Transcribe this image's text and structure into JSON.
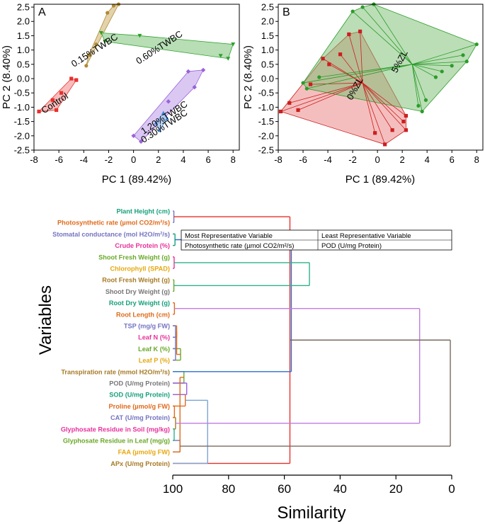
{
  "chart_data": [
    {
      "type": "scatter",
      "panel_label": "A",
      "xlabel": "PC 1 (89.42%)",
      "ylabel": "PC 2 (8.40%)",
      "xlim": [
        -8,
        8.5
      ],
      "ylim": [
        -2.5,
        2.6
      ],
      "xticks": [
        "-8",
        "-6",
        "-4",
        "-2",
        "0",
        "2",
        "4",
        "6",
        "8"
      ],
      "yticks": [
        "2.5",
        "2.0",
        "1.5",
        "1.0",
        "0.5",
        "0.0",
        "-0.5",
        "-1.0",
        "-1.5",
        "-2.0",
        "-2.5"
      ],
      "groups": [
        {
          "name": "Control",
          "color": "#e8302c",
          "fill": "#f4a6a4",
          "marker": "square",
          "label_at": [
            -6.2,
            -0.95
          ],
          "points": [
            [
              -7.6,
              -1.15
            ],
            [
              -6.2,
              -1.1
            ],
            [
              -5.8,
              -0.5
            ],
            [
              -5.0,
              0.0
            ],
            [
              -4.6,
              -0.05
            ],
            [
              -6.5,
              -0.75
            ]
          ]
        },
        {
          "name": "0.15%TWBC",
          "color": "#b08a32",
          "fill": "#d9c38f",
          "marker": "circle",
          "label_at": [
            -3.0,
            0.9
          ],
          "points": [
            [
              -3.8,
              0.45
            ],
            [
              -3.6,
              0.82
            ],
            [
              -3.0,
              1.2
            ],
            [
              -2.1,
              2.3
            ],
            [
              -1.2,
              2.6
            ],
            [
              -1.6,
              2.55
            ]
          ]
        },
        {
          "name": "0.60%TWBC",
          "color": "#2ea02c",
          "fill": "#9fd39c",
          "marker": "triangle-down",
          "label_at": [
            2.2,
            1.0
          ],
          "points": [
            [
              -2.6,
              1.6
            ],
            [
              -2.3,
              1.3
            ],
            [
              0.5,
              1.5
            ],
            [
              7.0,
              0.8
            ],
            [
              7.6,
              0.7
            ],
            [
              8.0,
              1.2
            ]
          ]
        },
        {
          "name": "1.20%TWBC",
          "color": "#9a62d9",
          "fill": "#cdb5ef",
          "marker": "diamond",
          "label_at": [
            2.6,
            -1.45
          ],
          "points": [
            [
              0.0,
              -2.0
            ],
            [
              0.6,
              -2.2
            ],
            [
              2.8,
              -0.8
            ],
            [
              4.4,
              0.25
            ],
            [
              5.6,
              0.3
            ],
            [
              4.9,
              -0.3
            ]
          ]
        },
        {
          "name": "0.30%TWBC",
          "color": "#3b86d6",
          "fill": "#a6c9ef",
          "marker": "triangle-up",
          "label_at": [
            2.6,
            -1.75
          ],
          "points": [
            [
              1.8,
              -1.55
            ],
            [
              2.1,
              -1.8
            ],
            [
              2.7,
              -1.4
            ],
            [
              2.4,
              -1.2
            ]
          ]
        }
      ]
    },
    {
      "type": "scatter",
      "panel_label": "B",
      "xlabel": "PC 1 (89.42%)",
      "ylabel": "PC 2 (8.40%)",
      "xlim": [
        -8,
        8.5
      ],
      "ylim": [
        -2.5,
        2.6
      ],
      "xticks": [
        "-8",
        "-6",
        "-4",
        "-2",
        "0",
        "2",
        "4",
        "6",
        "8"
      ],
      "yticks": [
        "2.5",
        "2.0",
        "1.5",
        "1.0",
        "0.5",
        "0.0",
        "-0.5",
        "-1.0",
        "-1.5",
        "-2.0",
        "-2.5"
      ],
      "groups": [
        {
          "name": "0%ZL",
          "color": "#cc1f1f",
          "fill": "rgba(232,110,110,0.45)",
          "marker": "square",
          "label_at": [
            -1.6,
            -0.4
          ],
          "center": [
            -1.2,
            -0.15
          ],
          "points": [
            [
              -7.8,
              -1.15
            ],
            [
              -7.1,
              -0.85
            ],
            [
              -6.4,
              -1.1
            ],
            [
              -5.4,
              -0.2
            ],
            [
              -4.4,
              0.7
            ],
            [
              -3.9,
              0.5
            ],
            [
              -3.0,
              0.85
            ],
            [
              -2.3,
              1.55
            ],
            [
              -1.4,
              1.65
            ],
            [
              -0.2,
              -1.9
            ],
            [
              0.6,
              -2.3
            ],
            [
              1.2,
              -1.8
            ],
            [
              2.1,
              -1.5
            ],
            [
              2.3,
              -1.8
            ],
            [
              2.3,
              -1.3
            ]
          ]
        },
        {
          "name": "5%ZL",
          "color": "#2a9c2a",
          "fill": "rgba(120,190,110,0.5)",
          "marker": "circle",
          "label_at": [
            2.0,
            0.55
          ],
          "center": [
            2.8,
            0.5
          ],
          "points": [
            [
              -6.0,
              -0.15
            ],
            [
              -5.7,
              -0.35
            ],
            [
              -4.7,
              0.05
            ],
            [
              -2.0,
              2.35
            ],
            [
              -1.2,
              2.5
            ],
            [
              -0.3,
              2.6
            ],
            [
              3.3,
              -0.95
            ],
            [
              3.6,
              -1.15
            ],
            [
              3.9,
              -0.75
            ],
            [
              4.7,
              0.05
            ],
            [
              5.2,
              0.25
            ],
            [
              6.0,
              0.45
            ],
            [
              6.9,
              0.82
            ],
            [
              7.2,
              0.6
            ],
            [
              8.0,
              1.2
            ]
          ]
        }
      ]
    },
    {
      "type": "dendrogram",
      "xlabel": "Similarity",
      "ylabel": "Variables",
      "xlim": [
        100,
        0
      ],
      "xticks": [
        "100",
        "80",
        "60",
        "40",
        "20",
        "0"
      ],
      "leaves": [
        {
          "label": "Plant Height (cm)",
          "color": "#17a07a"
        },
        {
          "label": "Photosynthetic rate (µmol CO2/m²/s)",
          "color": "#e06a1a"
        },
        {
          "label": "Stomatal conductance (mol H2O/m²/s)",
          "color": "#7474c2"
        },
        {
          "label": "Crude Protein (%)",
          "color": "#e8319a"
        },
        {
          "label": "Shoot Fresh Weight (g)",
          "color": "#6aa829"
        },
        {
          "label": "Chlorophyll (SPAD)",
          "color": "#e6a80f"
        },
        {
          "label": "Root Fresh Weight (g)",
          "color": "#a77a26"
        },
        {
          "label": "Shoot Dry Weight (g)",
          "color": "#777777"
        },
        {
          "label": "Root Dry Weight (g)",
          "color": "#17a07a"
        },
        {
          "label": "Root Length (cm)",
          "color": "#e06a1a"
        },
        {
          "label": "TSP (mg/g FW)",
          "color": "#7474c2"
        },
        {
          "label": "Leaf N (%)",
          "color": "#e8319a"
        },
        {
          "label": "Leaf K (%)",
          "color": "#6aa829"
        },
        {
          "label": "Leaf P (%)",
          "color": "#e6a80f"
        },
        {
          "label": "Transpiration rate (mmol H2O/m²/s)",
          "color": "#a77a26"
        },
        {
          "label": "POD (U/mg Protein)",
          "color": "#777777"
        },
        {
          "label": "SOD (U/mg Protein)",
          "color": "#17a07a"
        },
        {
          "label": "Proline (µmol/g FW)",
          "color": "#e06a1a"
        },
        {
          "label": "CAT (U/mg Protein)",
          "color": "#7474c2"
        },
        {
          "label": "Glyphosate Residue in Soil (mg/kg)",
          "color": "#e8319a"
        },
        {
          "label": "Glyphosate Residue in Leaf (mg/g)",
          "color": "#6aa829"
        },
        {
          "label": "FAA (µmol/g FW)",
          "color": "#e6a80f"
        },
        {
          "label": "APx (U/mg Protein)",
          "color": "#a77a26"
        }
      ],
      "merges": [
        {
          "nodes": [
            0,
            1
          ],
          "sim": 99.6,
          "color": "#7474c2"
        },
        {
          "nodes": [
            2,
            3
          ],
          "sim": 99.2,
          "color": "#17a07a"
        },
        {
          "nodes": [
            4,
            5
          ],
          "sim": 99.5,
          "color": "#e8319a"
        },
        {
          "nodes": [
            6,
            7
          ],
          "sim": 99.6,
          "color": "#6aa829"
        },
        {
          "nodes": [
            8,
            9
          ],
          "sim": 99.4,
          "color": "#e06a1a"
        },
        {
          "nodes": [
            10,
            11
          ],
          "sim": 98.6,
          "color": "#e06a1a"
        },
        {
          "nodes": [
            12,
            13
          ],
          "sim": 97.2,
          "color": "#6aa829"
        },
        {
          "nodes": [
            14,
            15
          ],
          "sim": 96.0,
          "color": "#6aa829"
        },
        {
          "nodes": [
            16,
            17
          ],
          "sim": 95.5,
          "color": "#e06a1a"
        },
        {
          "nodes": [
            10,
            11,
            12,
            13
          ],
          "sim": 99.0,
          "color": "#7474c2"
        },
        {
          "nodes": [
            18,
            19
          ],
          "sim": 99.0,
          "color": "#a77a26"
        },
        {
          "nodes": [
            20,
            21
          ],
          "sim": 97.4,
          "color": "#7474c2"
        },
        {
          "nodes": [
            22,
            23
          ],
          "sim": 58.0,
          "color": "#e8302c"
        },
        {
          "nodes": [
            24,
            14
          ],
          "sim": 57.5,
          "color": "#2a6fd0"
        },
        {
          "nodes": [
            25,
            26
          ],
          "sim": 51.0,
          "color": "#2eb08c"
        },
        {
          "nodes": [
            15,
            16
          ],
          "sim": 95.0,
          "color": "#9a62d9"
        },
        {
          "nodes": [
            17,
            18
          ],
          "sim": 99.4,
          "color": "#e06a1a"
        },
        {
          "nodes": [
            19,
            20
          ],
          "sim": 99.5,
          "color": "#2eb08c"
        },
        {
          "nodes": [
            28,
            29
          ],
          "sim": 98.6,
          "color": "#e06a1a"
        },
        {
          "nodes": [
            30,
            21
          ],
          "sim": 97.4,
          "color": "#e06a1a"
        },
        {
          "nodes": [
            31,
            22
          ],
          "sim": 87.5,
          "color": "#7ba4d6"
        },
        {
          "nodes": [
            27,
            33
          ],
          "sim": 11.5,
          "color": "#c07ce0"
        },
        {
          "nodes": [
            34,
            35
          ],
          "sim": 0.5,
          "color": "#7a6a60"
        }
      ]
    }
  ],
  "table": {
    "headers": [
      "Most Representative Variable",
      "Least Representative Variable"
    ],
    "cells": [
      "Photosynthetic rate (µmol CO2/m²/s)",
      "POD (U/mg Protein)"
    ]
  }
}
